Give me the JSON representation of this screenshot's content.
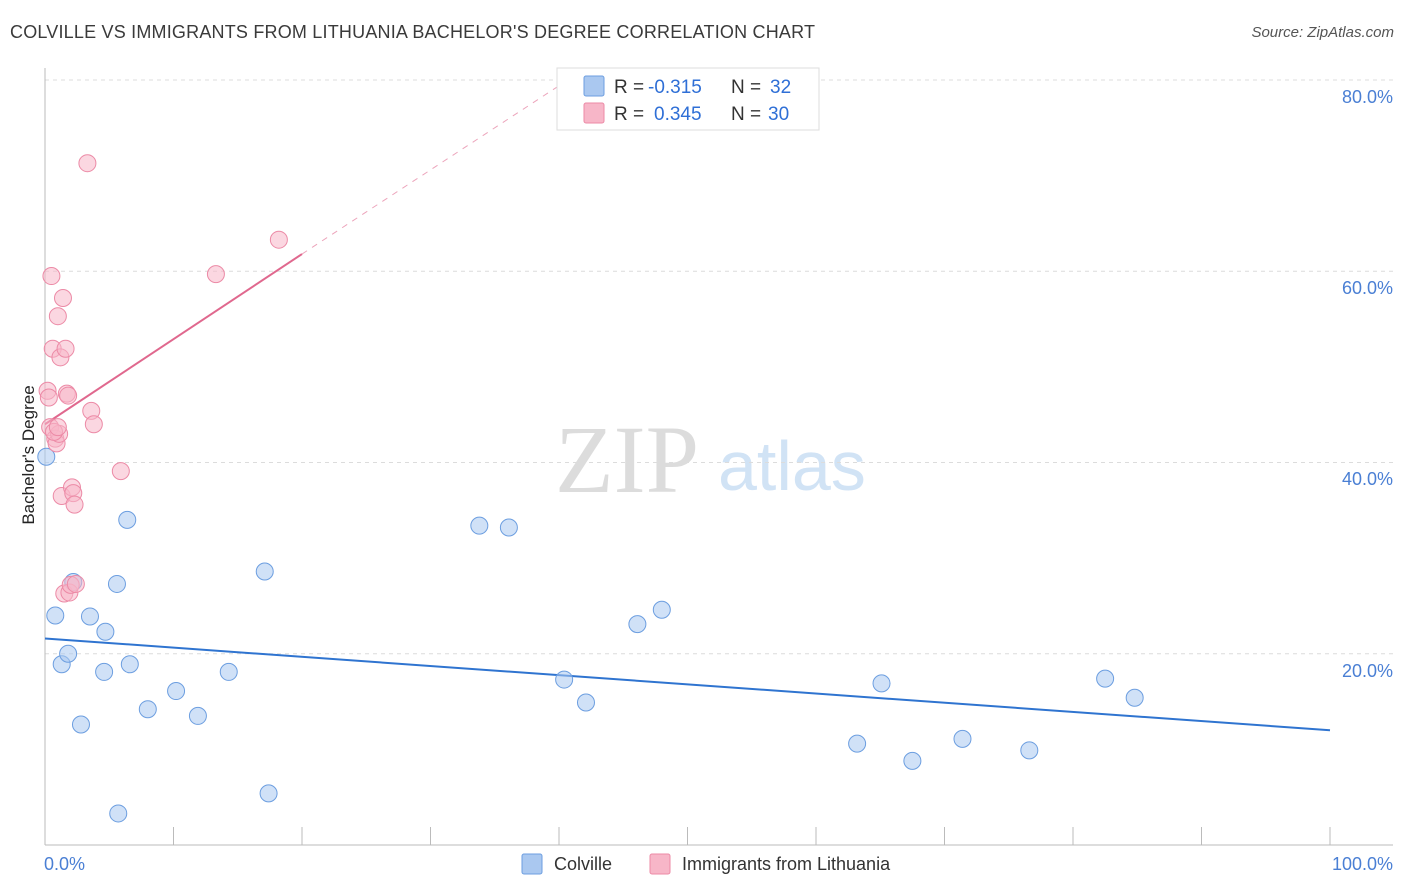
{
  "header": {
    "title": "COLVILLE VS IMMIGRANTS FROM LITHUANIA BACHELOR'S DEGREE CORRELATION CHART",
    "source": "Source: ZipAtlas.com"
  },
  "watermark": {
    "zip": "ZIP",
    "atlas": "atlas"
  },
  "legend": {
    "rows": [
      {
        "r_label": "R =",
        "r_value": "-0.315",
        "n_label": "N =",
        "n_value": "32",
        "color": "#aac8f0",
        "stroke": "#6c9ee0"
      },
      {
        "r_label": "R =",
        "r_value": "0.345",
        "n_label": "N =",
        "n_value": "30",
        "color": "#f7b6c8",
        "stroke": "#ec8aa6"
      }
    ]
  },
  "bottom_legend": [
    {
      "label": "Colville",
      "color": "#aac8f0",
      "stroke": "#6c9ee0"
    },
    {
      "label": "Immigrants from Lithuania",
      "color": "#f7b6c8",
      "stroke": "#ec8aa6"
    }
  ],
  "chart_data": {
    "type": "scatter",
    "title": "COLVILLE VS IMMIGRANTS FROM LITHUANIA BACHELOR'S DEGREE CORRELATION CHART",
    "xlabel": "",
    "ylabel": "Bachelor's Degree",
    "xlim": [
      0,
      100
    ],
    "ylim": [
      0,
      80
    ],
    "x_tick_labels": [
      "0.0%",
      "100.0%"
    ],
    "y_ticks": [
      20,
      40,
      60,
      80
    ],
    "y_tick_labels": [
      "20.0%",
      "40.0%",
      "60.0%",
      "80.0%"
    ],
    "grid": true,
    "series": [
      {
        "name": "Colville",
        "color": "#aac8f0",
        "stroke": "#6c9ee0",
        "line_color": "#2f74d0",
        "trend": {
          "x": [
            0,
            100
          ],
          "y": [
            21.6,
            12.0
          ],
          "dashed_extension": false
        },
        "points": [
          [
            0.1,
            40.6
          ],
          [
            0.8,
            24.0
          ],
          [
            1.3,
            18.9
          ],
          [
            1.8,
            20.0
          ],
          [
            2.2,
            27.5
          ],
          [
            2.8,
            12.6
          ],
          [
            3.5,
            23.9
          ],
          [
            4.6,
            18.1
          ],
          [
            4.7,
            22.3
          ],
          [
            5.6,
            27.3
          ],
          [
            5.7,
            3.3
          ],
          [
            6.4,
            34.0
          ],
          [
            6.6,
            18.9
          ],
          [
            8.0,
            14.2
          ],
          [
            10.2,
            16.1
          ],
          [
            11.9,
            13.5
          ],
          [
            14.3,
            18.1
          ],
          [
            17.1,
            28.6
          ],
          [
            17.4,
            5.4
          ],
          [
            33.8,
            33.4
          ],
          [
            36.1,
            33.2
          ],
          [
            40.4,
            17.3
          ],
          [
            42.1,
            14.9
          ],
          [
            46.1,
            23.1
          ],
          [
            48.0,
            24.6
          ],
          [
            63.2,
            10.6
          ],
          [
            65.1,
            16.9
          ],
          [
            67.5,
            8.8
          ],
          [
            71.4,
            11.1
          ],
          [
            76.6,
            9.9
          ],
          [
            82.5,
            17.4
          ],
          [
            84.8,
            15.4
          ]
        ]
      },
      {
        "name": "Immigrants from Lithuania",
        "color": "#f7b6c8",
        "stroke": "#ec8aa6",
        "line_color": "#e0688e",
        "trend": {
          "x": [
            0,
            20
          ],
          "y": [
            44.0,
            61.8
          ],
          "dashed_to": [
            40,
            79.4
          ]
        },
        "points": [
          [
            0.2,
            47.5
          ],
          [
            0.3,
            46.8
          ],
          [
            0.4,
            43.7
          ],
          [
            0.5,
            59.5
          ],
          [
            0.6,
            51.9
          ],
          [
            0.8,
            42.5
          ],
          [
            0.9,
            42.0
          ],
          [
            1.0,
            55.3
          ],
          [
            1.1,
            43.0
          ],
          [
            1.2,
            51.0
          ],
          [
            1.3,
            36.5
          ],
          [
            1.4,
            57.2
          ],
          [
            1.5,
            26.3
          ],
          [
            1.6,
            51.9
          ],
          [
            1.7,
            47.2
          ],
          [
            1.8,
            47.0
          ],
          [
            1.9,
            26.4
          ],
          [
            2.0,
            27.2
          ],
          [
            2.1,
            37.4
          ],
          [
            2.2,
            36.8
          ],
          [
            2.3,
            35.6
          ],
          [
            2.4,
            27.3
          ],
          [
            3.3,
            71.3
          ],
          [
            3.6,
            45.4
          ],
          [
            3.8,
            44.0
          ],
          [
            5.9,
            39.1
          ],
          [
            13.3,
            59.7
          ],
          [
            18.2,
            63.3
          ],
          [
            0.7,
            43.2
          ],
          [
            1.0,
            43.7
          ]
        ]
      }
    ]
  }
}
